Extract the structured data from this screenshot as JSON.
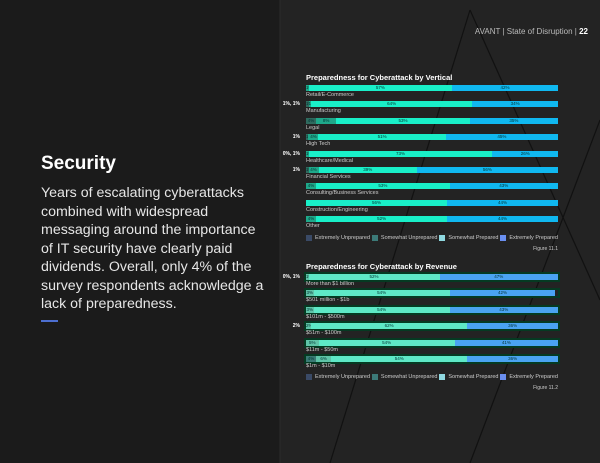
{
  "header": {
    "brand": "AVANT",
    "title": "State of Disruption",
    "page": "22"
  },
  "section": {
    "title": "Security",
    "body": "Years of escalating cyberattacks combined with widespread messaging around the importance of IT security have clearly paid dividends. Overall, only 4% of the survey respondents acknowledge a lack of preparedness."
  },
  "legend": [
    "Extremely Unprepared",
    "Somewhat Unprepared",
    "Somewhat Prepared",
    "Extremely Prepared"
  ],
  "chart_data": [
    {
      "type": "bar",
      "stacked": true,
      "orientation": "horizontal",
      "title": "Preparedness for Cyberattack by Vertical",
      "figure": "Figure 11.1",
      "colors": [
        "#2f6a5e",
        "#1fa88a",
        "#19efc8",
        "#10b8f0"
      ],
      "categories": [
        "Retail/E-Commerce",
        "Manufacturing",
        "Legal",
        "High Tech",
        "Healthcare/Medical",
        "Financial Services",
        "Consulting/Business Services",
        "Construction/Engineering",
        "Other"
      ],
      "outside_labels": [
        "",
        "1%, 1%",
        "",
        "1%",
        "0%, 1%",
        "1%",
        "",
        "",
        ""
      ],
      "series": [
        {
          "name": "Extremely Unprepared",
          "values": [
            0,
            1,
            4,
            1,
            0,
            1,
            0,
            0,
            0
          ]
        },
        {
          "name": "Somewhat Unprepared",
          "values": [
            1,
            1,
            8,
            4,
            1,
            4,
            4,
            0,
            4
          ]
        },
        {
          "name": "Somewhat Prepared",
          "values": [
            57,
            64,
            53,
            51,
            73,
            39,
            53,
            56,
            52
          ]
        },
        {
          "name": "Extremely Prepared",
          "values": [
            42,
            34,
            35,
            45,
            26,
            56,
            43,
            44,
            44
          ]
        }
      ]
    },
    {
      "type": "bar",
      "stacked": true,
      "orientation": "horizontal",
      "title": "Preparedness for Cyberattack by Revenue",
      "figure": "Figure 11.2",
      "colors": [
        "#3a7a74",
        "#5fc4a8",
        "#5ee8c6",
        "#4aa3f2"
      ],
      "categories": [
        "More than $1 billion",
        "$501 million - $1b",
        "$101m - $500m",
        "$51m - $100m",
        "$11m - $50m",
        "$1m - $10m"
      ],
      "outside_labels": [
        "0%, 1%",
        "",
        "",
        "2%",
        "",
        ""
      ],
      "series": [
        {
          "name": "Extremely Unprepared",
          "values": [
            0,
            0,
            0,
            0,
            0,
            4
          ]
        },
        {
          "name": "Somewhat Unprepared",
          "values": [
            1,
            3,
            3,
            2,
            5,
            6
          ]
        },
        {
          "name": "Somewhat Prepared",
          "values": [
            52,
            54,
            54,
            62,
            54,
            54
          ]
        },
        {
          "name": "Extremely Prepared",
          "values": [
            47,
            42,
            43,
            36,
            41,
            36
          ]
        }
      ]
    }
  ]
}
